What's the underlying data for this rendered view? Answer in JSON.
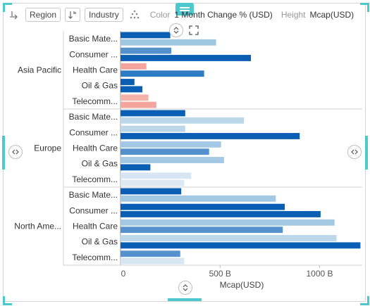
{
  "toolbar": {
    "region_label": "Region",
    "industry_label": "Industry",
    "color_label": "Color",
    "color_value": "1 Month Change % (USD)",
    "height_label": "Height",
    "height_value": "Mcap(USD)"
  },
  "chart_data": {
    "type": "bar",
    "orientation": "horizontal",
    "xlabel": "Mcap(USD)",
    "xlim": [
      0,
      1200
    ],
    "ticks": [
      {
        "value": 0,
        "label": "0"
      },
      {
        "value": 500,
        "label": "500 B"
      },
      {
        "value": 1000,
        "label": "1000 B"
      }
    ],
    "groups": [
      {
        "name": "Asia Pacific",
        "categories": [
          {
            "label": "Basic Mate...",
            "bars": [
              {
                "value": 250,
                "color": "#0a5fb4"
              },
              {
                "value": 480,
                "color": "#9fc6e1"
              }
            ]
          },
          {
            "label": "Consumer ...",
            "bars": [
              {
                "value": 255,
                "color": "#5592cd"
              },
              {
                "value": 655,
                "color": "#0a5fb4"
              }
            ]
          },
          {
            "label": "Health Care",
            "bars": [
              {
                "value": 130,
                "color": "#f4a59e"
              },
              {
                "value": 420,
                "color": "#2e7cc4"
              }
            ]
          },
          {
            "label": "Oil & Gas",
            "bars": [
              {
                "value": 70,
                "color": "#0a5fb4"
              },
              {
                "value": 110,
                "color": "#0a5fb4"
              }
            ]
          },
          {
            "label": "Telecomm...",
            "bars": [
              {
                "value": 140,
                "color": "#f4b2a9"
              },
              {
                "value": 180,
                "color": "#f4a59e"
              }
            ]
          }
        ]
      },
      {
        "name": "Europe",
        "categories": [
          {
            "label": "Basic Mate...",
            "bars": [
              {
                "value": 325,
                "color": "#0a5fb4"
              },
              {
                "value": 620,
                "color": "#bcd6ea"
              }
            ]
          },
          {
            "label": "Consumer ...",
            "bars": [
              {
                "value": 325,
                "color": "#bcd6ea"
              },
              {
                "value": 900,
                "color": "#0a5fb4"
              }
            ]
          },
          {
            "label": "Health Care",
            "bars": [
              {
                "value": 505,
                "color": "#a3c8e3"
              },
              {
                "value": 445,
                "color": "#5592cd"
              }
            ]
          },
          {
            "label": "Oil & Gas",
            "bars": [
              {
                "value": 520,
                "color": "#a3c8e3"
              },
              {
                "value": 150,
                "color": "#0a5fb4"
              }
            ]
          },
          {
            "label": "Telecomm...",
            "bars": [
              {
                "value": 355,
                "color": "#d7e6f2"
              },
              {
                "value": 320,
                "color": "#dce9f3"
              }
            ]
          }
        ]
      },
      {
        "name": "North Ame...",
        "categories": [
          {
            "label": "Basic Mate...",
            "bars": [
              {
                "value": 305,
                "color": "#0a5fb4"
              },
              {
                "value": 780,
                "color": "#a3c8e3"
              }
            ]
          },
          {
            "label": "Consumer ...",
            "bars": [
              {
                "value": 825,
                "color": "#0a5fb4"
              },
              {
                "value": 1005,
                "color": "#0a5fb4"
              }
            ]
          },
          {
            "label": "Health Care",
            "bars": [
              {
                "value": 1075,
                "color": "#a3c8e3"
              },
              {
                "value": 815,
                "color": "#5592cd"
              }
            ]
          },
          {
            "label": "Oil & Gas",
            "bars": [
              {
                "value": 1085,
                "color": "#bcd6ea"
              },
              {
                "value": 1205,
                "color": "#0a5fb4"
              }
            ]
          },
          {
            "label": "Telecomm...",
            "bars": [
              {
                "value": 300,
                "color": "#5592cd"
              },
              {
                "value": 320,
                "color": "#d7e6f2"
              }
            ]
          }
        ]
      }
    ]
  }
}
